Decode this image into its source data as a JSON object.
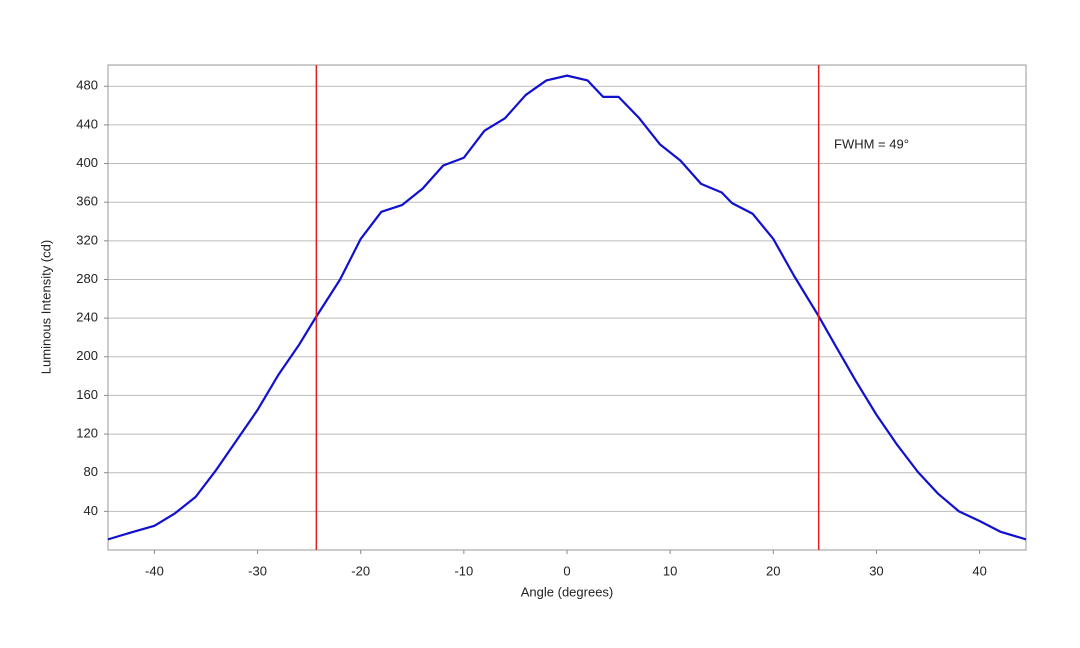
{
  "chart_data": {
    "type": "line",
    "xlabel": "Angle (degrees)",
    "ylabel": "Luminous Intensity (cd)",
    "annotation": "FWHM = 49°",
    "x": [
      -44.5,
      -42,
      -40,
      -38,
      -36,
      -34,
      -32,
      -30,
      -28,
      -26,
      -24.4,
      -22,
      -20,
      -18,
      -16,
      -14,
      -12,
      -10,
      -8,
      -6,
      -4,
      -2,
      0,
      2,
      3.5,
      5,
      7,
      9,
      11,
      13,
      15,
      16,
      18,
      20,
      22,
      24.4,
      26,
      28,
      30,
      32,
      34,
      36,
      38,
      40,
      42,
      44.5
    ],
    "series": [
      {
        "color": "#1010d0",
        "values": [
          11,
          19,
          25,
          38,
          55,
          83,
          114,
          145,
          181,
          212,
          240,
          280,
          322,
          350,
          357,
          374,
          398,
          406,
          434,
          447,
          471,
          486,
          491,
          486,
          469,
          469,
          447,
          420,
          403,
          379,
          370,
          359,
          348,
          322,
          284,
          242,
          212,
          175,
          140,
          109,
          81,
          58,
          40,
          30,
          19,
          11
        ]
      }
    ],
    "vlines": [
      -24.3,
      24.4
    ],
    "vline_color": "#e02020",
    "xlim": [
      -44.5,
      44.5
    ],
    "ylim": [
      0,
      502
    ],
    "xticks": [
      -40,
      -30,
      -20,
      -10,
      0,
      10,
      20,
      30,
      40
    ],
    "yticks": [
      40,
      80,
      120,
      160,
      200,
      240,
      280,
      320,
      360,
      400,
      440,
      480
    ],
    "grid": true
  }
}
